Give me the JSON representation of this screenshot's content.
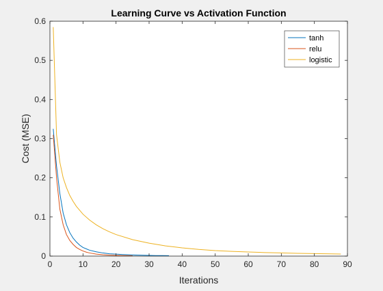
{
  "chart_data": {
    "type": "line",
    "title": "Learning Curve vs Activation Function",
    "xlabel": "Iterations",
    "ylabel": "Cost (MSE)",
    "xlim": [
      0,
      90
    ],
    "ylim": [
      0,
      0.6
    ],
    "xticks": [
      "0",
      "10",
      "20",
      "30",
      "40",
      "50",
      "60",
      "70",
      "80",
      "90"
    ],
    "yticks": [
      "0",
      "0.1",
      "0.2",
      "0.3",
      "0.4",
      "0.5",
      "0.6"
    ],
    "grid": false,
    "legend_position": "top-right",
    "series": [
      {
        "name": "tanh",
        "color": "#0072bd",
        "x": [
          1,
          2,
          3,
          4,
          5,
          6,
          7,
          8,
          9,
          10,
          12,
          14,
          16,
          18,
          20,
          22,
          24,
          26,
          28,
          30,
          32,
          34,
          36
        ],
        "y": [
          0.325,
          0.23,
          0.16,
          0.11,
          0.08,
          0.06,
          0.046,
          0.036,
          0.028,
          0.022,
          0.015,
          0.011,
          0.008,
          0.006,
          0.005,
          0.004,
          0.0032,
          0.0026,
          0.0021,
          0.0017,
          0.0014,
          0.0012,
          0.001
        ]
      },
      {
        "name": "relu",
        "color": "#d95319",
        "x": [
          1,
          2,
          3,
          4,
          5,
          6,
          7,
          8,
          9,
          10,
          11,
          12,
          14,
          16,
          18,
          20,
          22,
          24,
          25
        ],
        "y": [
          0.31,
          0.2,
          0.12,
          0.08,
          0.055,
          0.04,
          0.03,
          0.022,
          0.017,
          0.013,
          0.01,
          0.008,
          0.005,
          0.0035,
          0.0025,
          0.0018,
          0.0013,
          0.001,
          0.0009
        ]
      },
      {
        "name": "logistic",
        "color": "#edb120",
        "x": [
          1,
          2,
          3,
          4,
          5,
          6,
          7,
          8,
          10,
          12,
          14,
          16,
          18,
          20,
          25,
          30,
          35,
          40,
          45,
          50,
          55,
          60,
          65,
          70,
          75,
          80,
          85,
          88
        ],
        "y": [
          0.585,
          0.31,
          0.24,
          0.2,
          0.175,
          0.155,
          0.14,
          0.127,
          0.107,
          0.092,
          0.08,
          0.07,
          0.062,
          0.055,
          0.042,
          0.033,
          0.026,
          0.021,
          0.017,
          0.014,
          0.012,
          0.0105,
          0.009,
          0.008,
          0.007,
          0.0063,
          0.0056,
          0.0052
        ]
      }
    ]
  }
}
